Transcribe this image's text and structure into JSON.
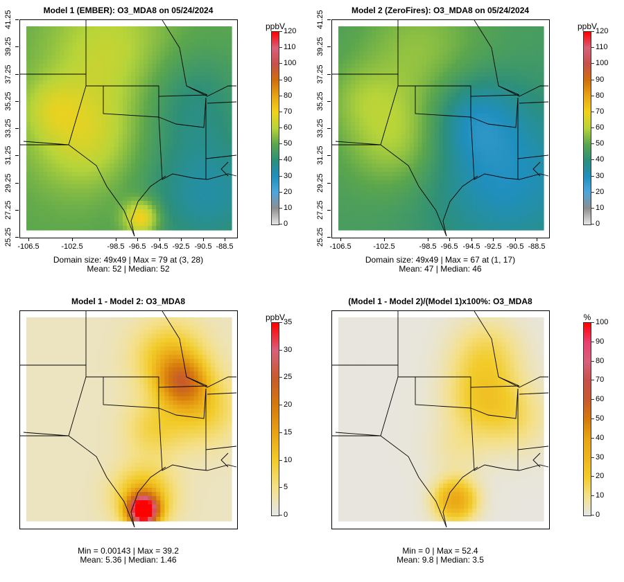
{
  "chart_data": [
    {
      "type": "heatmap",
      "title": "Model 1 (EMBER): O3_MDA8 on 05/24/2024",
      "xticks": [
        "-106.5",
        "-102.5",
        "-98.5",
        "-96.5",
        "-94.5",
        "-92.5",
        "-90.5",
        "-88.5"
      ],
      "yticks": [
        "25.25",
        "27.25",
        "29.25",
        "31.25",
        "33.25",
        "35.25",
        "37.25",
        "39.25",
        "41.25"
      ],
      "colorbar": {
        "unit": "ppbV",
        "ticks": [
          "0",
          "10",
          "20",
          "30",
          "40",
          "50",
          "60",
          "70",
          "80",
          "90",
          "100",
          "110",
          "120"
        ],
        "range": [
          0,
          120
        ],
        "colors": [
          "#e6e6e6",
          "#8e8e8e",
          "#4ea6dc",
          "#1f8fbe",
          "#2d8f7a",
          "#5ba64d",
          "#b6d43a",
          "#f2d21c",
          "#e8a414",
          "#cf6f0c",
          "#c8504a",
          "#d8607a",
          "#ff0000"
        ]
      },
      "grid": {
        "nx": 49,
        "ny": 49
      },
      "stats": {
        "line1": "Domain size: 49x49 | Max = 79 at (3, 28)",
        "line2": "Mean: 52 |  Median: 52"
      },
      "summary": {
        "max": 79,
        "mean": 52,
        "median": 52
      }
    },
    {
      "type": "heatmap",
      "title": "Model 2 (ZeroFires): O3_MDA8 on 05/24/2024",
      "xticks": [
        "-106.5",
        "-102.5",
        "-98.5",
        "-96.5",
        "-94.5",
        "-92.5",
        "-90.5",
        "-88.5"
      ],
      "yticks": [
        "25.25",
        "27.25",
        "29.25",
        "31.25",
        "33.25",
        "35.25",
        "37.25",
        "39.25",
        "41.25"
      ],
      "colorbar": {
        "unit": "ppbV",
        "ticks": [
          "0",
          "10",
          "20",
          "30",
          "40",
          "50",
          "60",
          "70",
          "80",
          "90",
          "100",
          "110",
          "120"
        ],
        "range": [
          0,
          120
        ],
        "colors": [
          "#e6e6e6",
          "#8e8e8e",
          "#4ea6dc",
          "#1f8fbe",
          "#2d8f7a",
          "#5ba64d",
          "#b6d43a",
          "#f2d21c",
          "#e8a414",
          "#cf6f0c",
          "#c8504a",
          "#d8607a",
          "#ff0000"
        ]
      },
      "grid": {
        "nx": 49,
        "ny": 49
      },
      "stats": {
        "line1": "Domain size: 49x49 | Max = 67 at (1, 17)",
        "line2": "Mean: 47 |  Median: 46"
      },
      "summary": {
        "max": 67,
        "mean": 47,
        "median": 46
      }
    },
    {
      "type": "heatmap",
      "title": "Model 1 - Model 2: O3_MDA8",
      "colorbar": {
        "unit": "ppbV",
        "ticks": [
          "0",
          "5",
          "10",
          "15",
          "20",
          "25",
          "30",
          "35"
        ],
        "range": [
          0,
          35
        ],
        "colors": [
          "#e6e6e6",
          "#f4e08a",
          "#f2cc2a",
          "#e8a414",
          "#d67a0c",
          "#c85a2c",
          "#d8607a",
          "#ff0000"
        ]
      },
      "grid": {
        "nx": 49,
        "ny": 49
      },
      "stats": {
        "line1": "Min = 0.00143 | Max = 39.2",
        "line2": "Mean: 5.36 |  Median: 1.46"
      },
      "summary": {
        "min": 0.00143,
        "max": 39.2,
        "mean": 5.36,
        "median": 1.46
      }
    },
    {
      "type": "heatmap",
      "title": "(Model 1 - Model 2)/(Model 1)x100%: O3_MDA8",
      "colorbar": {
        "unit": "%",
        "ticks": [
          "0",
          "10",
          "20",
          "30",
          "40",
          "50",
          "60",
          "70",
          "80",
          "90",
          "100"
        ],
        "range": [
          0,
          100
        ],
        "colors": [
          "#e6e6e6",
          "#f4e08a",
          "#f2cc2a",
          "#eeb41e",
          "#e8a414",
          "#d67a0c",
          "#c85a2c",
          "#c8504a",
          "#d8607a",
          "#e84070",
          "#ff0000"
        ]
      },
      "grid": {
        "nx": 49,
        "ny": 49
      },
      "stats": {
        "line1": "Min = 0 | Max = 52.4",
        "line2": "Mean: 9.8 |  Median: 3.5"
      },
      "summary": {
        "min": 0,
        "max": 52.4,
        "mean": 9.8,
        "median": 3.5
      }
    }
  ]
}
